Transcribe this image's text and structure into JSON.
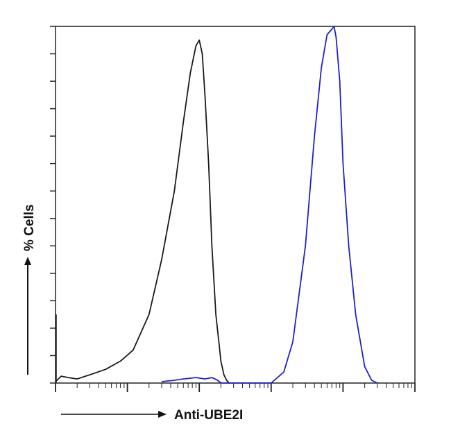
{
  "chart_data": {
    "type": "line",
    "title": "",
    "xlabel": "Anti-UBE2I",
    "ylabel": "% Cells",
    "x_scale": "log",
    "xlim": [
      1,
      100000
    ],
    "ylim": [
      0,
      13
    ],
    "grid": false,
    "legend": "none",
    "series": [
      {
        "color": "#1a1a1a",
        "x": [
          1,
          1.2,
          1.5,
          2,
          3,
          5,
          8,
          12,
          20,
          30,
          45,
          60,
          75,
          90,
          100,
          110,
          120,
          135,
          150,
          170,
          200,
          220,
          240,
          260
        ],
        "y": [
          0.05,
          0.25,
          0.2,
          0.15,
          0.3,
          0.5,
          0.8,
          1.2,
          2.5,
          4.5,
          7,
          9.5,
          11.3,
          12.3,
          12.5,
          12,
          10.5,
          8,
          5,
          2.5,
          0.8,
          0.3,
          0.1,
          0
        ]
      },
      {
        "color": "#1f1fcf",
        "x": [
          30,
          45,
          60,
          90,
          120,
          150,
          180,
          200,
          1000,
          1500,
          2000,
          3000,
          4000,
          5000,
          6000,
          7000,
          7500,
          8000,
          9000,
          10000,
          12000,
          15000,
          20000,
          25000,
          30000
        ],
        "y": [
          0.05,
          0.1,
          0.15,
          0.2,
          0.15,
          0.2,
          0.1,
          0,
          0,
          0.4,
          1.5,
          5,
          9,
          11.5,
          12.7,
          12.9,
          13,
          12.6,
          11,
          8,
          5,
          2.5,
          0.6,
          0.1,
          0
        ]
      }
    ]
  }
}
